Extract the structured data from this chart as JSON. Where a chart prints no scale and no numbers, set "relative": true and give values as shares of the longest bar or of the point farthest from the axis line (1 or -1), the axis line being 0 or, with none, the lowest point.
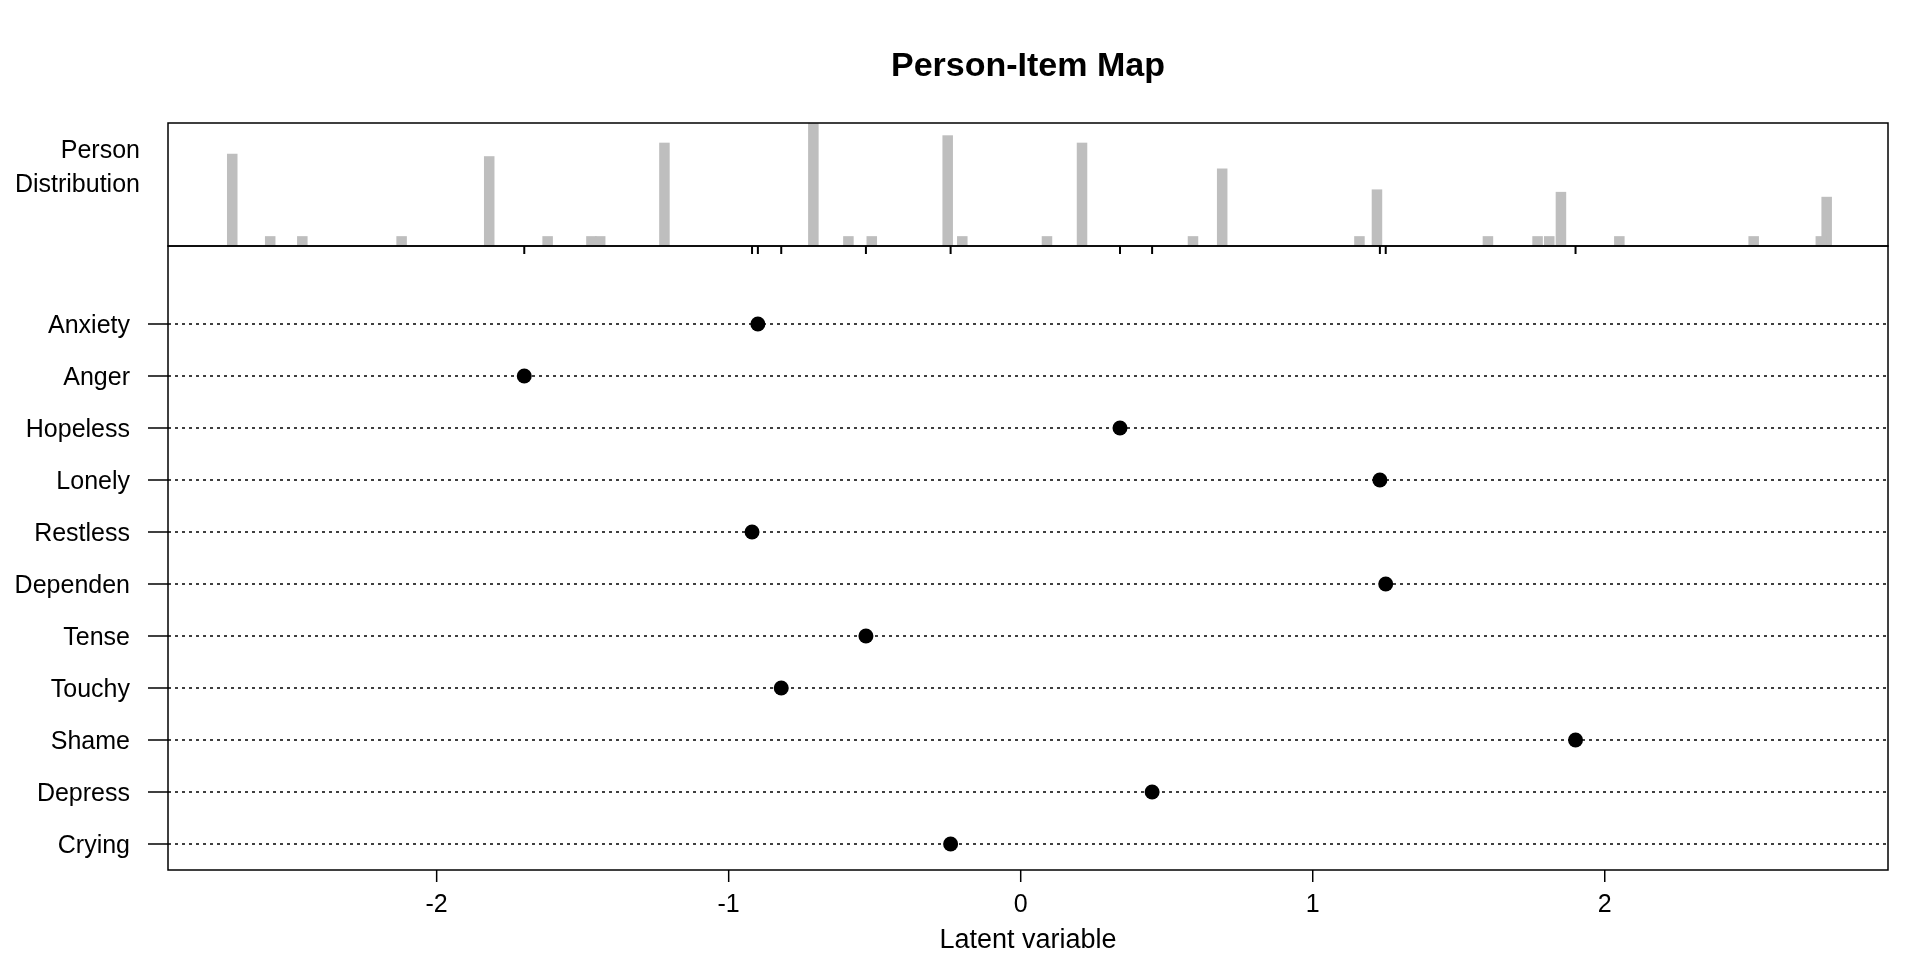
{
  "chart_data": [
    {
      "type": "bar",
      "title": "Person-Item Map",
      "ylabel": "Person\nDistribution",
      "relative": true,
      "tick_labels": false,
      "xlim": [
        -2.92,
        2.97
      ],
      "color": "#bebebe",
      "x": [
        -2.7,
        -2.57,
        -2.46,
        -2.12,
        -1.82,
        -1.62,
        -1.47,
        -1.44,
        -1.22,
        -0.71,
        -0.59,
        -0.51,
        -0.25,
        -0.2,
        0.09,
        0.21,
        0.59,
        0.69,
        1.16,
        1.22,
        1.6,
        1.77,
        1.81,
        1.85,
        2.05,
        2.51,
        2.74,
        2.76
      ],
      "values": [
        0.75,
        0.08,
        0.08,
        0.08,
        0.73,
        0.08,
        0.08,
        0.08,
        0.84,
        1,
        0.08,
        0.08,
        0.9,
        0.08,
        0.08,
        0.84,
        0.08,
        0.63,
        0.08,
        0.46,
        0.08,
        0.08,
        0.08,
        0.44,
        0.08,
        0.08,
        0.08,
        0.4
      ]
    },
    {
      "type": "scatter",
      "orientation": "horizontal",
      "xlabel": "Latent variable",
      "xlim": [
        -2.92,
        2.97
      ],
      "xticks": [
        -2,
        -1,
        0,
        1,
        2
      ],
      "grid": "y",
      "marker": "circle",
      "color": "#000000",
      "categories": [
        "Anxiety",
        "Anger",
        "Hopeless",
        "Lonely",
        "Restless",
        "Dependen",
        "Tense",
        "Touchy",
        "Shame",
        "Depress",
        "Crying"
      ],
      "values": [
        -0.9,
        -1.7,
        0.34,
        1.23,
        -0.92,
        1.25,
        -0.53,
        -0.82,
        1.9,
        0.45,
        -0.24
      ]
    }
  ]
}
